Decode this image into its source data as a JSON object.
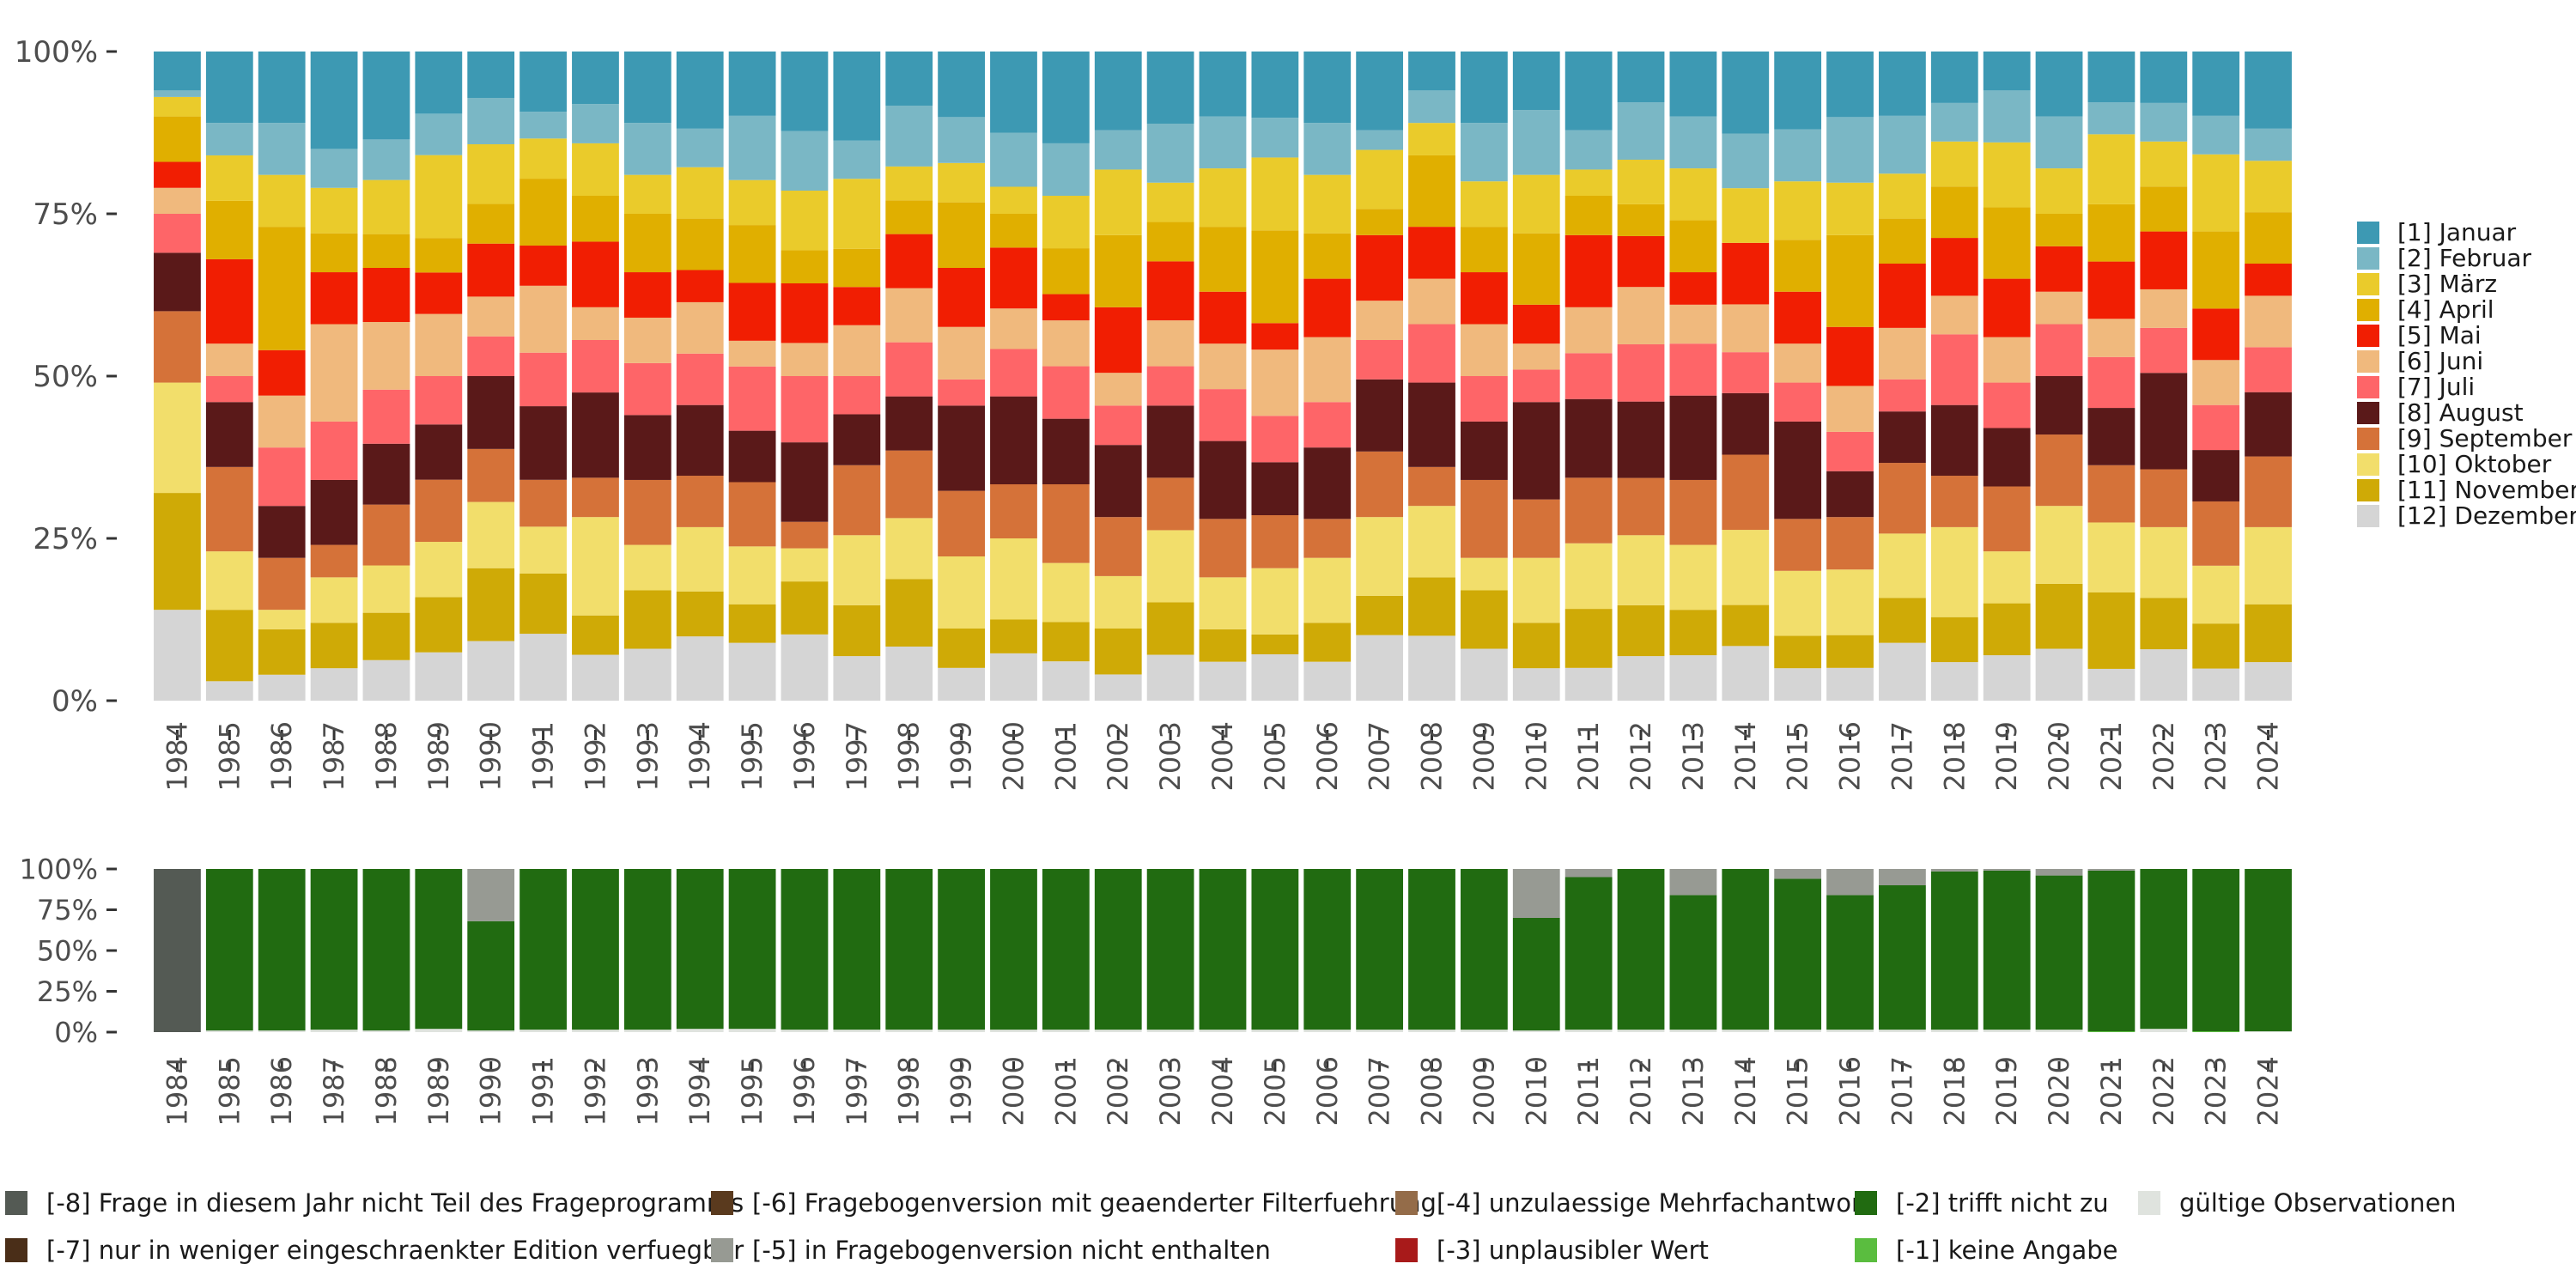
{
  "chart_data": [
    {
      "type": "bar",
      "stacked": true,
      "normalized": true,
      "title": "",
      "xlabel": "",
      "ylabel": "",
      "ylim": [
        0,
        100
      ],
      "y_ticks": [
        "0%",
        "25%",
        "50%",
        "75%",
        "100%"
      ],
      "grid": false,
      "legend_position": "right",
      "categories": [
        "1984",
        "1985",
        "1986",
        "1987",
        "1988",
        "1989",
        "1990",
        "1991",
        "1992",
        "1993",
        "1994",
        "1995",
        "1996",
        "1997",
        "1998",
        "1999",
        "2000",
        "2001",
        "2002",
        "2003",
        "2004",
        "2005",
        "2006",
        "2007",
        "2008",
        "2009",
        "2010",
        "2011",
        "2012",
        "2013",
        "2014",
        "2015",
        "2016",
        "2017",
        "2018",
        "2019",
        "2020",
        "2021",
        "2022",
        "2023",
        "2024"
      ],
      "stack_order": "bottom-to-top: [12] Dezember first, [1] Januar last",
      "series": [
        {
          "name": "[1] Januar",
          "color": "#3d99b3",
          "values": [
            6,
            11,
            11,
            15,
            13,
            9,
            7,
            9,
            8,
            11,
            12,
            10,
            12,
            14,
            8,
            10,
            12,
            14,
            12,
            11,
            10,
            10,
            11,
            12,
            6,
            11,
            9,
            12,
            8,
            10,
            12,
            12,
            10,
            10,
            8,
            6,
            10,
            8,
            8,
            10,
            12
          ]
        },
        {
          "name": "[2] Februar",
          "color": "#7ab7c5",
          "values": [
            1,
            5,
            8,
            6,
            6,
            6,
            7,
            4,
            6,
            8,
            6,
            10,
            9,
            6,
            9,
            7,
            8,
            8,
            6,
            9,
            8,
            6,
            8,
            3,
            5,
            9,
            10,
            6,
            9,
            8,
            8,
            8,
            10,
            9,
            6,
            8,
            8,
            5,
            6,
            6,
            5
          ]
        },
        {
          "name": "[3] März",
          "color": "#eacb2b",
          "values": [
            3,
            7,
            8,
            7,
            8,
            12,
            9,
            6,
            8,
            6,
            8,
            7,
            9,
            11,
            5,
            6,
            4,
            8,
            10,
            6,
            9,
            11,
            9,
            9,
            5,
            7,
            9,
            4,
            7,
            8,
            8,
            9,
            8,
            7,
            7,
            10,
            7,
            11,
            7,
            12,
            8
          ]
        },
        {
          "name": "[4] April",
          "color": "#e0af00",
          "values": [
            7,
            9,
            19,
            6,
            5,
            5,
            6,
            10,
            7,
            9,
            8,
            9,
            5,
            6,
            5,
            10,
            5,
            7,
            11,
            6,
            10,
            14,
            7,
            4,
            11,
            7,
            11,
            6,
            5,
            8,
            0,
            8,
            14,
            7,
            8,
            11,
            5,
            9,
            7,
            12,
            8
          ]
        },
        {
          "name": "[5] Mai",
          "color": "#f11e02",
          "values": [
            4,
            13,
            7,
            8,
            8,
            6,
            8,
            6,
            10,
            7,
            5,
            9,
            9,
            6,
            8,
            9,
            9,
            4,
            10,
            9,
            8,
            4,
            9,
            10,
            8,
            8,
            6,
            11,
            8,
            5,
            9,
            8,
            9,
            10,
            9,
            9,
            7,
            9,
            9,
            8,
            5
          ]
        },
        {
          "name": "[6] Juni",
          "color": "#f0b97d",
          "values": [
            4,
            5,
            8,
            15,
            10,
            9,
            6,
            10,
            5,
            7,
            8,
            4,
            5,
            8,
            8,
            8,
            6,
            7,
            5,
            7,
            7,
            10,
            10,
            6,
            7,
            8,
            4,
            7,
            9,
            6,
            7,
            6,
            7,
            8,
            6,
            7,
            5,
            6,
            6,
            7,
            8
          ]
        },
        {
          "name": "[7] Juli",
          "color": "#fe6568",
          "values": [
            6,
            4,
            9,
            9,
            8,
            7,
            6,
            8,
            8,
            8,
            8,
            10,
            10,
            6,
            8,
            4,
            7,
            8,
            6,
            6,
            8,
            7,
            7,
            6,
            9,
            7,
            5,
            7,
            9,
            8,
            6,
            6,
            6,
            5,
            11,
            7,
            8,
            8,
            7,
            7,
            7
          ]
        },
        {
          "name": "[8] August",
          "color": "#5a1919",
          "values": [
            9,
            10,
            8,
            10,
            9,
            8,
            11,
            11,
            13,
            10,
            11,
            8,
            12,
            8,
            8,
            13,
            13,
            10,
            11,
            11,
            12,
            8,
            11,
            11,
            13,
            9,
            15,
            12,
            12,
            13,
            9,
            15,
            7,
            8,
            11,
            9,
            9,
            9,
            15,
            8,
            10
          ]
        },
        {
          "name": "[9] September",
          "color": "#d57239",
          "values": [
            11,
            13,
            8,
            5,
            9,
            9,
            8,
            7,
            6,
            10,
            8,
            10,
            4,
            11,
            10,
            10,
            8,
            12,
            9,
            8,
            9,
            8,
            6,
            10,
            6,
            12,
            9,
            10,
            9,
            10,
            11,
            8,
            8,
            11,
            8,
            10,
            11,
            9,
            9,
            10,
            11
          ]
        },
        {
          "name": "[10] Oktober",
          "color": "#f2de6b",
          "values": [
            17,
            9,
            3,
            7,
            7,
            8,
            10,
            7,
            15,
            7,
            10,
            9,
            5,
            11,
            9,
            11,
            12,
            9,
            8,
            11,
            8,
            10,
            10,
            12,
            11,
            5,
            10,
            10,
            11,
            10,
            11,
            10,
            10,
            10,
            14,
            8,
            12,
            11,
            11,
            9,
            12
          ]
        },
        {
          "name": "[11] November",
          "color": "#cfaa06",
          "values": [
            18,
            11,
            7,
            7,
            7,
            8,
            11,
            9,
            6,
            9,
            7,
            6,
            8,
            8,
            10,
            6,
            5,
            6,
            7,
            8,
            5,
            3,
            6,
            6,
            9,
            9,
            7,
            9,
            8,
            7,
            6,
            5,
            5,
            7,
            7,
            8,
            10,
            12,
            8,
            7,
            9
          ]
        },
        {
          "name": "[12] Dezember",
          "color": "#d5d5d5",
          "values": [
            14,
            3,
            4,
            5,
            6,
            7,
            9,
            10,
            7,
            8,
            10,
            9,
            10,
            7,
            8,
            5,
            7,
            6,
            4,
            7,
            6,
            7,
            6,
            10,
            10,
            8,
            5,
            5,
            7,
            7,
            8,
            5,
            5,
            9,
            6,
            7,
            8,
            5,
            8,
            5,
            6
          ]
        }
      ]
    },
    {
      "type": "bar",
      "stacked": true,
      "normalized": true,
      "title": "",
      "xlabel": "",
      "ylabel": "",
      "ylim": [
        0,
        100
      ],
      "y_ticks": [
        "0%",
        "25%",
        "50%",
        "75%",
        "100%"
      ],
      "grid": false,
      "legend_position": "bottom",
      "categories": [
        "1984",
        "1985",
        "1986",
        "1987",
        "1988",
        "1989",
        "1990",
        "1991",
        "1992",
        "1993",
        "1994",
        "1995",
        "1996",
        "1997",
        "1998",
        "1999",
        "2000",
        "2001",
        "2002",
        "2003",
        "2004",
        "2005",
        "2006",
        "2007",
        "2008",
        "2009",
        "2010",
        "2011",
        "2012",
        "2013",
        "2014",
        "2015",
        "2016",
        "2017",
        "2018",
        "2019",
        "2020",
        "2021",
        "2022",
        "2023",
        "2024"
      ],
      "stack_order": "bottom-to-top: gültige Observationen, [-1], [-2], [-3], [-4], [-5], [-6], [-7], [-8]",
      "series": [
        {
          "name": "gültige Observationen",
          "color": "#dfe3de",
          "values": [
            0,
            1,
            1,
            1.5,
            1,
            2,
            1,
            1.5,
            1.5,
            1.5,
            2,
            2,
            1.5,
            1.5,
            1.5,
            1.5,
            1.5,
            1.5,
            1.5,
            1.5,
            1.5,
            1.5,
            1.5,
            1.5,
            1.5,
            1.5,
            1,
            1.5,
            1.5,
            1.5,
            1.5,
            1.5,
            1.5,
            1.5,
            1.5,
            1.5,
            1.5,
            0,
            2,
            0,
            0.5
          ]
        },
        {
          "name": "[-1] keine Angabe",
          "color": "#5abd3f",
          "values": [
            0,
            0,
            0,
            0,
            0,
            0,
            0,
            0,
            0,
            0,
            0,
            0,
            0,
            0,
            0,
            0,
            0,
            0,
            0,
            0,
            0,
            0,
            0,
            0,
            0,
            0,
            0,
            0,
            0,
            0,
            0,
            0,
            0,
            0,
            0,
            0,
            0,
            0.5,
            0,
            0.5,
            0
          ]
        },
        {
          "name": "[-2] trifft nicht zu",
          "color": "#216b11",
          "values": [
            0,
            99,
            99,
            98.5,
            99,
            98,
            67,
            98.5,
            98.5,
            98.5,
            98,
            98,
            98.5,
            98.5,
            98.5,
            98.5,
            98.5,
            98.5,
            98.5,
            98.5,
            98.5,
            98.5,
            98.5,
            98.5,
            98.5,
            98.5,
            69,
            93.5,
            98.5,
            82.5,
            98.5,
            92.5,
            82.5,
            88.5,
            97,
            97.5,
            94.5,
            98.5,
            98,
            99.5,
            99.5
          ]
        },
        {
          "name": "[-3] unplausibler Wert",
          "color": "#a81a1a",
          "values": [
            0,
            0,
            0,
            0,
            0,
            0,
            0,
            0,
            0,
            0,
            0,
            0,
            0,
            0,
            0,
            0,
            0,
            0,
            0,
            0,
            0,
            0,
            0,
            0,
            0,
            0,
            0,
            0,
            0,
            0,
            0,
            0,
            0,
            0,
            0,
            0,
            0,
            0,
            0,
            0,
            0
          ]
        },
        {
          "name": "[-4] unzulaessige Mehrfachantwort",
          "color": "#946c49",
          "values": [
            0,
            0,
            0,
            0,
            0,
            0,
            0,
            0,
            0,
            0,
            0,
            0,
            0,
            0,
            0,
            0,
            0,
            0,
            0,
            0,
            0,
            0,
            0,
            0,
            0,
            0,
            0,
            0,
            0,
            0,
            0,
            0,
            0,
            0,
            0,
            0,
            0,
            0,
            0,
            0,
            0
          ]
        },
        {
          "name": "[-5] in Fragebogenversion nicht enthalten",
          "color": "#979a93",
          "values": [
            0,
            0,
            0,
            0,
            0,
            0,
            32,
            0,
            0,
            0,
            0,
            0,
            0,
            0,
            0,
            0,
            0,
            0,
            0,
            0,
            0,
            0,
            0,
            0,
            0,
            0,
            30,
            5,
            0,
            16,
            0,
            6,
            16,
            10,
            1.5,
            1,
            4,
            1,
            0,
            0,
            0
          ]
        },
        {
          "name": "[-6] Fragebogenversion mit geaenderter Filterfuehrung",
          "color": "#5a3a1e",
          "values": [
            0,
            0,
            0,
            0,
            0,
            0,
            0,
            0,
            0,
            0,
            0,
            0,
            0,
            0,
            0,
            0,
            0,
            0,
            0,
            0,
            0,
            0,
            0,
            0,
            0,
            0,
            0,
            0,
            0,
            0,
            0,
            0,
            0,
            0,
            0,
            0,
            0,
            0,
            0,
            0,
            0
          ]
        },
        {
          "name": "[-7] nur in weniger eingeschraenkter Edition verfuegbar",
          "color": "#4a2e18",
          "values": [
            0,
            0,
            0,
            0,
            0,
            0,
            0,
            0,
            0,
            0,
            0,
            0,
            0,
            0,
            0,
            0,
            0,
            0,
            0,
            0,
            0,
            0,
            0,
            0,
            0,
            0,
            0,
            0,
            0,
            0,
            0,
            0,
            0,
            0,
            0,
            0,
            0,
            0,
            0,
            0,
            0
          ]
        },
        {
          "name": "[-8] Frage in diesem Jahr nicht Teil des Frageprogramms",
          "color": "#545a54",
          "values": [
            100,
            0,
            0,
            0,
            0,
            0,
            0,
            0,
            0,
            0,
            0,
            0,
            0,
            0,
            0,
            0,
            0,
            0,
            0,
            0,
            0,
            0,
            0,
            0,
            0,
            0,
            0,
            0,
            0,
            0,
            0,
            0,
            0,
            0,
            0,
            0,
            0,
            0,
            0,
            0,
            0
          ]
        }
      ]
    }
  ],
  "top_legend": {
    "items": [
      "[1] Januar",
      "[2] Februar",
      "[3] März",
      "[4] April",
      "[5] Mai",
      "[6] Juni",
      "[7] Juli",
      "[8] August",
      "[9] September",
      "[10] Oktober",
      "[11] November",
      "[12] Dezember"
    ]
  },
  "bottom_legend": {
    "rows": [
      [
        {
          "label": "[-8] Frage in diesem Jahr nicht Teil des Frageprogramms",
          "color": "#545a54"
        },
        {
          "label": "[-6] Fragebogenversion mit geaenderter Filterfuehrung",
          "color": "#5a3a1e"
        },
        {
          "label": "[-4] unzulaessige Mehrfachantwort",
          "color": "#946c49"
        },
        {
          "label": "[-2] trifft nicht zu",
          "color": "#216b11"
        },
        {
          "label": "gültige Observationen",
          "color": "#dfe3de"
        }
      ],
      [
        {
          "label": "[-7] nur in weniger eingeschraenkter Edition verfuegbar",
          "color": "#4a2e18"
        },
        {
          "label": "[-5] in Fragebogenversion nicht enthalten",
          "color": "#979a93"
        },
        {
          "label": "[-3] unplausibler Wert",
          "color": "#a81a1a"
        },
        {
          "label": "[-1] keine Angabe",
          "color": "#5abd3f"
        }
      ]
    ]
  }
}
